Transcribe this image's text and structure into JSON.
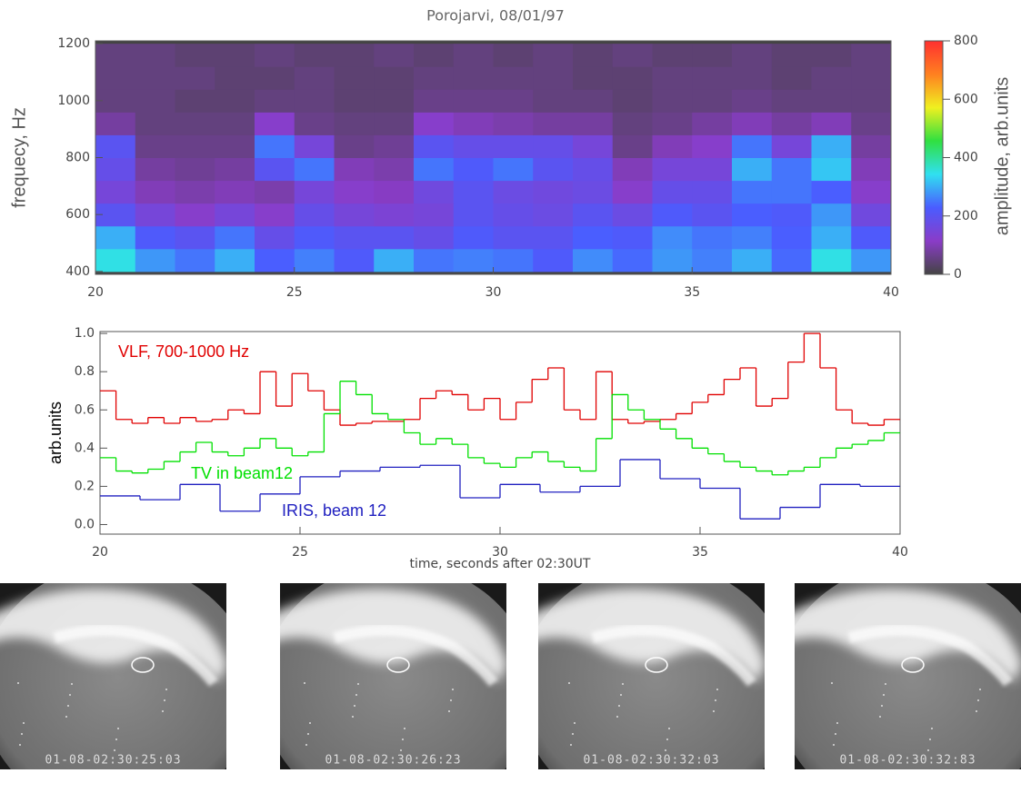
{
  "chart_data": [
    {
      "type": "heatmap",
      "title": "Porojarvi, 08/01/97",
      "y_label": "frequecy, Hz",
      "colorbar_label": "amplitude, arb.units",
      "x": [
        20.5,
        21.5,
        22.5,
        23.5,
        24.5,
        25.5,
        26.5,
        27.5,
        28.5,
        29.5,
        30.5,
        31.5,
        32.5,
        33.5,
        34.5,
        35.5,
        36.5,
        37.5,
        38.5,
        39.5
      ],
      "y": [
        440,
        520,
        600,
        680,
        760,
        840,
        920,
        1000,
        1080,
        1160
      ],
      "z": [
        [
          350,
          280,
          250,
          300,
          230,
          260,
          220,
          300,
          250,
          260,
          250,
          220,
          270,
          240,
          280,
          260,
          300,
          240,
          350,
          280
        ],
        [
          300,
          220,
          200,
          250,
          180,
          220,
          200,
          200,
          180,
          220,
          200,
          200,
          230,
          220,
          270,
          250,
          260,
          230,
          300,
          220
        ],
        [
          200,
          150,
          120,
          150,
          120,
          180,
          150,
          140,
          150,
          200,
          180,
          170,
          200,
          170,
          220,
          200,
          230,
          220,
          280,
          160
        ],
        [
          150,
          100,
          90,
          100,
          90,
          150,
          120,
          110,
          160,
          200,
          170,
          160,
          170,
          120,
          180,
          180,
          250,
          250,
          230,
          120
        ],
        [
          180,
          80,
          70,
          80,
          200,
          250,
          100,
          90,
          250,
          220,
          250,
          200,
          180,
          100,
          150,
          150,
          300,
          250,
          320,
          100
        ],
        [
          200,
          60,
          60,
          60,
          250,
          150,
          60,
          70,
          200,
          180,
          180,
          180,
          150,
          60,
          100,
          120,
          250,
          150,
          300,
          80
        ],
        [
          80,
          50,
          50,
          50,
          120,
          60,
          50,
          50,
          120,
          100,
          90,
          80,
          80,
          50,
          60,
          80,
          100,
          80,
          100,
          60
        ],
        [
          50,
          50,
          40,
          40,
          50,
          50,
          40,
          40,
          60,
          60,
          60,
          50,
          50,
          40,
          50,
          50,
          60,
          50,
          50,
          50
        ],
        [
          50,
          50,
          50,
          40,
          40,
          50,
          40,
          40,
          50,
          50,
          50,
          50,
          40,
          40,
          50,
          50,
          50,
          40,
          50,
          50
        ],
        [
          50,
          50,
          40,
          40,
          50,
          40,
          40,
          50,
          40,
          50,
          40,
          50,
          40,
          50,
          40,
          40,
          50,
          40,
          40,
          50
        ]
      ],
      "xlim": [
        20,
        40
      ],
      "xticks": [
        20,
        25,
        30,
        35,
        40
      ],
      "ylim": [
        390,
        1210
      ],
      "yticks": [
        400,
        600,
        800,
        1000,
        1200
      ],
      "clim": [
        0,
        800
      ],
      "cticks": [
        0,
        200,
        400,
        600,
        800
      ],
      "colormap": [
        "#444444",
        "#8a3cc8",
        "#4a5cff",
        "#30e0f0",
        "#30e040",
        "#f0f020",
        "#ff8020",
        "#ff3030"
      ]
    },
    {
      "type": "line",
      "y_label": "arb.units",
      "x_label": "time, seconds after 02:30UT",
      "step": true,
      "xlim": [
        20,
        40
      ],
      "xticks": [
        20,
        25,
        30,
        35,
        40
      ],
      "ylim": [
        -0.05,
        1.01
      ],
      "yticks": [
        {
          "value": 0,
          "label": "0.0"
        },
        0.2,
        0.4,
        0.6,
        0.8,
        {
          "value": 1,
          "label": "1.0"
        }
      ],
      "series": [
        {
          "name": "VLF, 700-1000 Hz",
          "color": "#e00000",
          "x": [
            20,
            20.4,
            20.8,
            21.2,
            21.6,
            22,
            22.4,
            22.8,
            23.2,
            23.6,
            24,
            24.4,
            24.8,
            25.2,
            25.6,
            26,
            26.4,
            26.8,
            27.2,
            27.6,
            28,
            28.4,
            28.8,
            29.2,
            29.6,
            30,
            30.4,
            30.8,
            31.2,
            31.6,
            32,
            32.4,
            32.8,
            33.2,
            33.6,
            34,
            34.4,
            34.8,
            35.2,
            35.6,
            36,
            36.4,
            36.8,
            37.2,
            37.6,
            38,
            38.4,
            38.8,
            39.2,
            39.6
          ],
          "values": [
            0.7,
            0.55,
            0.53,
            0.56,
            0.53,
            0.56,
            0.54,
            0.55,
            0.6,
            0.58,
            0.8,
            0.62,
            0.79,
            0.7,
            0.6,
            0.52,
            0.53,
            0.54,
            0.54,
            0.55,
            0.66,
            0.7,
            0.68,
            0.6,
            0.66,
            0.55,
            0.64,
            0.76,
            0.82,
            0.6,
            0.55,
            0.8,
            0.55,
            0.53,
            0.54,
            0.55,
            0.58,
            0.64,
            0.68,
            0.76,
            0.82,
            0.62,
            0.66,
            0.85,
            1.0,
            0.82,
            0.6,
            0.53,
            0.52,
            0.55
          ]
        },
        {
          "name": "TV in beam12",
          "color": "#00e000",
          "x": [
            20,
            20.4,
            20.8,
            21.2,
            21.6,
            22,
            22.4,
            22.8,
            23.2,
            23.6,
            24,
            24.4,
            24.8,
            25.2,
            25.6,
            26,
            26.4,
            26.8,
            27.2,
            27.6,
            28,
            28.4,
            28.8,
            29.2,
            29.6,
            30,
            30.4,
            30.8,
            31.2,
            31.6,
            32,
            32.4,
            32.8,
            33.2,
            33.6,
            34,
            34.4,
            34.8,
            35.2,
            35.6,
            36,
            36.4,
            36.8,
            37.2,
            37.6,
            38,
            38.4,
            38.8,
            39.2,
            39.6
          ],
          "values": [
            0.35,
            0.28,
            0.27,
            0.29,
            0.33,
            0.38,
            0.43,
            0.38,
            0.36,
            0.4,
            0.45,
            0.4,
            0.36,
            0.38,
            0.58,
            0.75,
            0.68,
            0.58,
            0.55,
            0.48,
            0.42,
            0.45,
            0.42,
            0.35,
            0.32,
            0.3,
            0.35,
            0.38,
            0.33,
            0.3,
            0.28,
            0.45,
            0.68,
            0.6,
            0.55,
            0.5,
            0.45,
            0.4,
            0.37,
            0.33,
            0.3,
            0.28,
            0.26,
            0.28,
            0.3,
            0.35,
            0.4,
            0.42,
            0.44,
            0.48
          ]
        },
        {
          "name": "IRIS, beam 12",
          "color": "#2020c0",
          "x": [
            20,
            21,
            22,
            23,
            24,
            25,
            26,
            27,
            28,
            29,
            30,
            31,
            32,
            33,
            34,
            35,
            36,
            37,
            38,
            39
          ],
          "values": [
            0.15,
            0.13,
            0.21,
            0.07,
            0.16,
            0.25,
            0.28,
            0.3,
            0.31,
            0.14,
            0.21,
            0.17,
            0.2,
            0.34,
            0.24,
            0.19,
            0.03,
            0.09,
            0.21,
            0.2
          ]
        }
      ]
    }
  ],
  "images": [
    {
      "timestamp": "01-08-02:30:25:03"
    },
    {
      "timestamp": "01-08-02:30:26:23"
    },
    {
      "timestamp": "01-08-02:30:32:03"
    },
    {
      "timestamp": "01-08-02:30:32:83"
    }
  ]
}
